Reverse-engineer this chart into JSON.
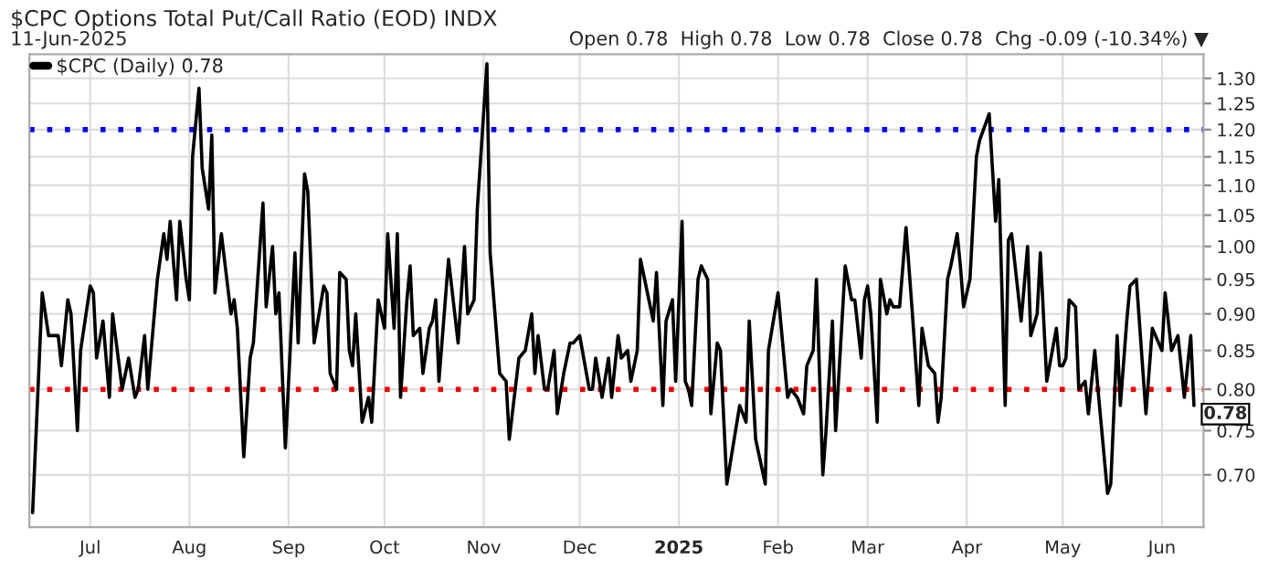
{
  "chart_data": {
    "type": "line",
    "title": "$CPC Options Total Put/Call Ratio (EOD) INDX",
    "subtitle": "11-Jun-2025",
    "annotations": [
      "Open 0.78  High 0.78  Low 0.78  Close 0.78  Chg -0.09 (-10.34%) ▼",
      {
        "text": "0.78",
        "x": "2025-06-11",
        "y": 0.78
      }
    ],
    "x": [
      "2024-06-13",
      "2024-06-16",
      "2024-06-18",
      "2024-06-21",
      "2024-06-22",
      "2024-06-24",
      "2024-06-25",
      "2024-06-27",
      "2024-06-28",
      "2024-07-01",
      "2024-07-02",
      "2024-07-03",
      "2024-07-05",
      "2024-07-07",
      "2024-07-08",
      "2024-07-11",
      "2024-07-13",
      "2024-07-15",
      "2024-07-16",
      "2024-07-18",
      "2024-07-19",
      "2024-07-22",
      "2024-07-24",
      "2024-07-25",
      "2024-07-26",
      "2024-07-28",
      "2024-07-29",
      "2024-07-31",
      "2024-08-01",
      "2024-08-02",
      "2024-08-04",
      "2024-08-05",
      "2024-08-07",
      "2024-08-08",
      "2024-08-09",
      "2024-08-11",
      "2024-08-14",
      "2024-08-15",
      "2024-08-16",
      "2024-08-18",
      "2024-08-20",
      "2024-08-21",
      "2024-08-24",
      "2024-08-25",
      "2024-08-27",
      "2024-08-28",
      "2024-08-29",
      "2024-08-31",
      "2024-09-03",
      "2024-09-04",
      "2024-09-06",
      "2024-09-07",
      "2024-09-09",
      "2024-09-12",
      "2024-09-13",
      "2024-09-14",
      "2024-09-16",
      "2024-09-17",
      "2024-09-19",
      "2024-09-20",
      "2024-09-21",
      "2024-09-22",
      "2024-09-24",
      "2024-09-26",
      "2024-09-27",
      "2024-09-29",
      "2024-10-01",
      "2024-10-02",
      "2024-10-04",
      "2024-10-05",
      "2024-10-06",
      "2024-10-08",
      "2024-10-09",
      "2024-10-10",
      "2024-10-12",
      "2024-10-13",
      "2024-10-15",
      "2024-10-16",
      "2024-10-17",
      "2024-10-18",
      "2024-10-21",
      "2024-10-24",
      "2024-10-26",
      "2024-10-27",
      "2024-10-29",
      "2024-10-30",
      "2024-11-02",
      "2024-11-03",
      "2024-11-06",
      "2024-11-08",
      "2024-11-09",
      "2024-11-12",
      "2024-11-14",
      "2024-11-16",
      "2024-11-17",
      "2024-11-18",
      "2024-11-20",
      "2024-11-21",
      "2024-11-23",
      "2024-11-24",
      "2024-11-26",
      "2024-11-28",
      "2024-11-29",
      "2024-12-01",
      "2024-12-04",
      "2024-12-05",
      "2024-12-06",
      "2024-12-08",
      "2024-12-10",
      "2024-12-11",
      "2024-12-13",
      "2024-12-14",
      "2024-12-16",
      "2024-12-17",
      "2024-12-19",
      "2024-12-20",
      "2024-12-24",
      "2024-12-25",
      "2024-12-27",
      "2024-12-28",
      "2024-12-30",
      "2024-12-31",
      "2025-01-02",
      "2025-01-03",
      "2025-01-04",
      "2025-01-05",
      "2025-01-07",
      "2025-01-08",
      "2025-01-10",
      "2025-01-11",
      "2025-01-13",
      "2025-01-14",
      "2025-01-16",
      "2025-01-20",
      "2025-01-22",
      "2025-01-23",
      "2025-01-25",
      "2025-01-28",
      "2025-01-29",
      "2025-02-01",
      "2025-02-04",
      "2025-02-05",
      "2025-02-07",
      "2025-02-09",
      "2025-02-10",
      "2025-02-12",
      "2025-02-13",
      "2025-02-15",
      "2025-02-16",
      "2025-02-18",
      "2025-02-19",
      "2025-02-21",
      "2025-02-22",
      "2025-02-24",
      "2025-02-25",
      "2025-02-27",
      "2025-02-28",
      "2025-03-01",
      "2025-03-02",
      "2025-03-04",
      "2025-03-05",
      "2025-03-07",
      "2025-03-08",
      "2025-03-09",
      "2025-03-11",
      "2025-03-13",
      "2025-03-15",
      "2025-03-17",
      "2025-03-18",
      "2025-03-20",
      "2025-03-22",
      "2025-03-23",
      "2025-03-24",
      "2025-03-26",
      "2025-03-27",
      "2025-03-29",
      "2025-03-30",
      "2025-03-31",
      "2025-04-02",
      "2025-04-04",
      "2025-04-05",
      "2025-04-08",
      "2025-04-10",
      "2025-04-11",
      "2025-04-13",
      "2025-04-14",
      "2025-04-15",
      "2025-04-18",
      "2025-04-20",
      "2025-04-21",
      "2025-04-23",
      "2025-04-24",
      "2025-04-26",
      "2025-04-29",
      "2025-04-30",
      "2025-05-01",
      "2025-05-02",
      "2025-05-03",
      "2025-05-05",
      "2025-05-06",
      "2025-05-08",
      "2025-05-09",
      "2025-05-11",
      "2025-05-12",
      "2025-05-15",
      "2025-05-16",
      "2025-05-18",
      "2025-05-19",
      "2025-05-21",
      "2025-05-22",
      "2025-05-24",
      "2025-05-27",
      "2025-05-29",
      "2025-06-01",
      "2025-06-02",
      "2025-06-04",
      "2025-06-06",
      "2025-06-08",
      "2025-06-10",
      "2025-06-11"
    ],
    "series": [
      {
        "name": "$CPC (Daily) 0.78",
        "color": "#000000",
        "values": [
          0.66,
          0.93,
          0.87,
          0.87,
          0.83,
          0.92,
          0.9,
          0.75,
          0.85,
          0.94,
          0.93,
          0.84,
          0.89,
          0.79,
          0.9,
          0.8,
          0.84,
          0.79,
          0.8,
          0.87,
          0.8,
          0.95,
          1.02,
          0.98,
          1.04,
          0.92,
          1.04,
          0.95,
          0.92,
          1.15,
          1.28,
          1.13,
          1.06,
          1.19,
          0.93,
          1.02,
          0.9,
          0.92,
          0.88,
          0.72,
          0.84,
          0.86,
          1.07,
          0.91,
          1.0,
          0.9,
          0.93,
          0.73,
          0.99,
          0.86,
          1.12,
          1.09,
          0.86,
          0.94,
          0.93,
          0.82,
          0.8,
          0.96,
          0.95,
          0.85,
          0.83,
          0.9,
          0.76,
          0.79,
          0.76,
          0.92,
          0.88,
          1.02,
          0.88,
          1.02,
          0.79,
          0.92,
          0.97,
          0.87,
          0.88,
          0.82,
          0.88,
          0.89,
          0.92,
          0.81,
          0.98,
          0.86,
          1.0,
          0.9,
          0.92,
          1.06,
          1.33,
          0.99,
          0.82,
          0.81,
          0.74,
          0.84,
          0.85,
          0.9,
          0.82,
          0.87,
          0.8,
          0.8,
          0.85,
          0.77,
          0.82,
          0.86,
          0.86,
          0.87,
          0.8,
          0.8,
          0.84,
          0.79,
          0.84,
          0.79,
          0.87,
          0.84,
          0.85,
          0.81,
          0.85,
          0.98,
          0.89,
          0.96,
          0.78,
          0.89,
          0.92,
          0.81,
          1.04,
          0.81,
          0.8,
          0.78,
          0.95,
          0.97,
          0.95,
          0.77,
          0.86,
          0.85,
          0.69,
          0.78,
          0.76,
          0.89,
          0.74,
          0.69,
          0.85,
          0.93,
          0.79,
          0.8,
          0.79,
          0.77,
          0.83,
          0.85,
          0.95,
          0.7,
          0.75,
          0.89,
          0.75,
          0.89,
          0.97,
          0.92,
          0.92,
          0.84,
          0.92,
          0.94,
          0.9,
          0.76,
          0.95,
          0.9,
          0.92,
          0.91,
          0.91,
          1.03,
          0.9,
          0.78,
          0.88,
          0.83,
          0.82,
          0.76,
          0.79,
          0.95,
          0.97,
          1.02,
          0.97,
          0.91,
          0.95,
          1.15,
          1.18,
          1.23,
          1.04,
          1.11,
          0.78,
          1.01,
          1.02,
          0.89,
          1.0,
          0.87,
          0.9,
          0.99,
          0.81,
          0.88,
          0.83,
          0.83,
          0.84,
          0.92,
          0.91,
          0.8,
          0.81,
          0.77,
          0.85,
          0.8,
          0.68,
          0.69,
          0.87,
          0.78,
          0.89,
          0.94,
          0.95,
          0.77,
          0.88,
          0.85,
          0.93,
          0.85,
          0.87,
          0.79,
          0.87,
          0.78
        ]
      }
    ],
    "log": "y",
    "ylim": [
      0.645,
      1.35
    ],
    "yticks": [
      {
        "value": 0.7,
        "label": "0.70"
      },
      0.75,
      {
        "value": 0.8,
        "label": "0.80"
      },
      0.85,
      {
        "value": 0.9,
        "label": "0.90"
      },
      0.95,
      {
        "value": 1.0,
        "label": "1.00"
      },
      1.05,
      {
        "value": 1.1,
        "label": "1.10"
      },
      1.15,
      {
        "value": 1.2,
        "label": "1.20"
      },
      1.25,
      {
        "value": 1.3,
        "label": "1.30"
      }
    ],
    "xlim": [
      "2024-06-12",
      "2025-06-14"
    ],
    "xticks": [
      {
        "value": "2024-07-01",
        "label": "Jul"
      },
      {
        "value": "2024-08-01",
        "label": "Aug"
      },
      {
        "value": "2024-09-01",
        "label": "Sep"
      },
      {
        "value": "2024-10-01",
        "label": "Oct"
      },
      {
        "value": "2024-11-01",
        "label": "Nov"
      },
      {
        "value": "2024-12-01",
        "label": "Dec"
      },
      {
        "value": "2025-01-01",
        "label": "2025"
      },
      {
        "value": "2025-02-01",
        "label": "Feb"
      },
      {
        "value": "2025-03-01",
        "label": "Mar"
      },
      {
        "value": "2025-04-01",
        "label": "Apr"
      },
      {
        "value": "2025-05-01",
        "label": "May"
      },
      {
        "value": "2025-06-01",
        "label": "Jun"
      }
    ],
    "ref_lines": [
      {
        "axis": "y",
        "value": 1.2,
        "color": "#0000ee",
        "line_style": "dotted"
      },
      {
        "axis": "y",
        "value": 0.8,
        "color": "#ee0000",
        "line_style": "dotted"
      }
    ],
    "grid": true,
    "legend": "top left",
    "marker": "none",
    "line_style": "solid"
  }
}
